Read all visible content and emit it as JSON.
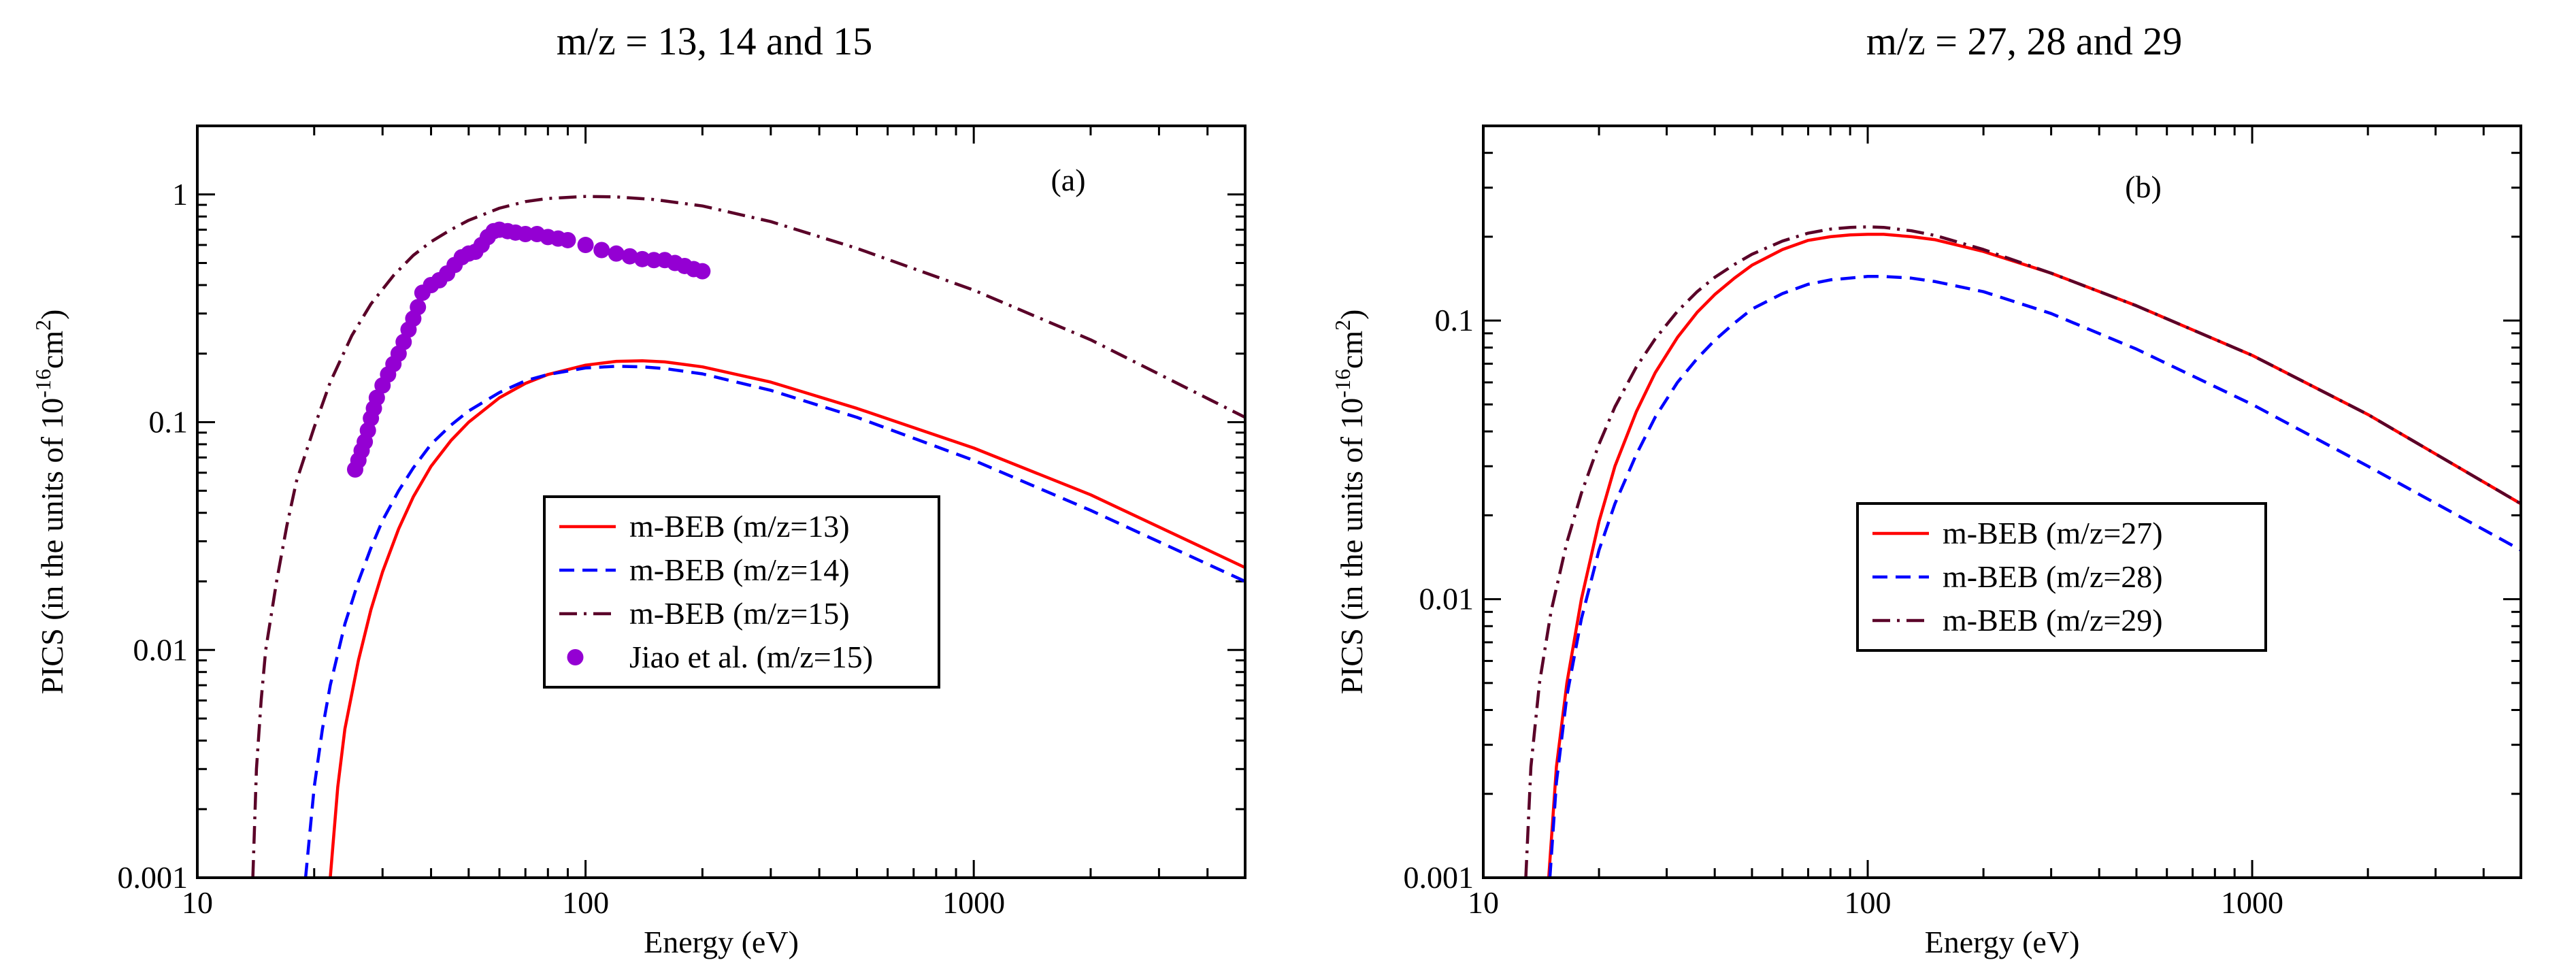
{
  "chart_data": [
    {
      "type": "line",
      "title": "m/z = 13, 14 and 15",
      "panel_label": "(a)",
      "xlabel": "Energy (eV)",
      "ylabel": "PICS (in the units of 10",
      "ylabel_exp": "-16",
      "ylabel_unit": "cm",
      "ylabel_unit_exp": "2",
      "ylabel_close": ")",
      "xscale": "log",
      "yscale": "log",
      "xlim": [
        10,
        5000
      ],
      "ylim": [
        0.001,
        2
      ],
      "x_ticks": [
        {
          "v": 10,
          "label": "10"
        },
        {
          "v": 100,
          "label": "100"
        },
        {
          "v": 1000,
          "label": "1000"
        }
      ],
      "y_ticks": [
        {
          "v": 0.001,
          "label": "0.001"
        },
        {
          "v": 0.01,
          "label": "0.01"
        },
        {
          "v": 0.1,
          "label": "0.1"
        },
        {
          "v": 1,
          "label": "1"
        }
      ],
      "legend_position": "center-right",
      "series": [
        {
          "name": "m-BEB (m/z=13)",
          "style": "solid",
          "color": "#ff0000",
          "x": [
            22,
            23,
            24,
            26,
            28,
            30,
            33,
            36,
            40,
            45,
            50,
            60,
            70,
            80,
            100,
            120,
            140,
            160,
            200,
            300,
            500,
            1000,
            2000,
            5000
          ],
          "y": [
            0.001,
            0.0025,
            0.0045,
            0.009,
            0.015,
            0.022,
            0.034,
            0.047,
            0.064,
            0.083,
            0.1,
            0.128,
            0.148,
            0.162,
            0.178,
            0.185,
            0.186,
            0.184,
            0.175,
            0.15,
            0.115,
            0.077,
            0.048,
            0.023
          ]
        },
        {
          "name": "m-BEB (m/z=14)",
          "style": "dashed",
          "color": "#0000ff",
          "x": [
            19,
            20,
            21,
            22,
            24,
            26,
            28,
            30,
            33,
            36,
            40,
            45,
            50,
            60,
            70,
            80,
            100,
            120,
            140,
            160,
            200,
            300,
            500,
            1000,
            2000,
            5000
          ],
          "y": [
            0.001,
            0.0025,
            0.0045,
            0.007,
            0.013,
            0.02,
            0.028,
            0.037,
            0.05,
            0.063,
            0.08,
            0.097,
            0.112,
            0.135,
            0.152,
            0.162,
            0.173,
            0.176,
            0.175,
            0.172,
            0.163,
            0.138,
            0.105,
            0.068,
            0.041,
            0.02
          ]
        },
        {
          "name": "m-BEB (m/z=15)",
          "style": "dashdot",
          "color": "#5a0028",
          "x": [
            13.9,
            14.2,
            14.6,
            15,
            16,
            17,
            18,
            20,
            22,
            25,
            28,
            32,
            36,
            40,
            45,
            50,
            60,
            70,
            80,
            100,
            120,
            150,
            200,
            300,
            500,
            1000,
            2000,
            5000
          ],
          "y": [
            0.001,
            0.003,
            0.006,
            0.01,
            0.02,
            0.035,
            0.055,
            0.095,
            0.15,
            0.24,
            0.33,
            0.44,
            0.54,
            0.62,
            0.7,
            0.77,
            0.87,
            0.93,
            0.96,
            0.98,
            0.975,
            0.95,
            0.89,
            0.76,
            0.58,
            0.38,
            0.23,
            0.105
          ]
        },
        {
          "name": "Jiao et al. (m/z=15)",
          "style": "markers",
          "color": "#9400d3",
          "x": [
            25.5,
            26,
            26.5,
            27,
            27.5,
            28,
            28.5,
            29,
            30,
            31,
            32,
            33,
            34,
            35,
            36,
            37,
            38,
            40,
            42,
            44,
            46,
            48,
            50,
            52,
            54,
            56,
            58,
            60,
            63,
            66,
            70,
            75,
            80,
            85,
            90,
            100,
            110,
            120,
            130,
            140,
            150,
            160,
            170,
            180,
            190,
            200
          ],
          "y": [
            0.062,
            0.068,
            0.075,
            0.082,
            0.092,
            0.104,
            0.115,
            0.128,
            0.145,
            0.162,
            0.18,
            0.2,
            0.225,
            0.255,
            0.285,
            0.32,
            0.37,
            0.4,
            0.42,
            0.45,
            0.49,
            0.53,
            0.55,
            0.56,
            0.6,
            0.65,
            0.69,
            0.7,
            0.69,
            0.68,
            0.67,
            0.67,
            0.65,
            0.64,
            0.63,
            0.6,
            0.57,
            0.55,
            0.535,
            0.52,
            0.515,
            0.515,
            0.5,
            0.485,
            0.47,
            0.46
          ]
        }
      ]
    },
    {
      "type": "line",
      "title": "m/z = 27, 28 and 29",
      "panel_label": "(b)",
      "xlabel": "Energy (eV)",
      "ylabel": "PICS (in the units of  10",
      "ylabel_exp": "-16",
      "ylabel_unit": "cm",
      "ylabel_unit_exp": "2",
      "ylabel_close": ")",
      "xscale": "log",
      "yscale": "log",
      "xlim": [
        10,
        5000
      ],
      "ylim": [
        0.001,
        0.5
      ],
      "x_ticks": [
        {
          "v": 10,
          "label": "10"
        },
        {
          "v": 100,
          "label": "100"
        },
        {
          "v": 1000,
          "label": "1000"
        }
      ],
      "y_ticks": [
        {
          "v": 0.001,
          "label": "0.001"
        },
        {
          "v": 0.01,
          "label": "0.01"
        },
        {
          "v": 0.1,
          "label": "0.1"
        }
      ],
      "legend_position": "center",
      "series": [
        {
          "name": "m-BEB (m/z=27)",
          "style": "solid",
          "color": "#ff0000",
          "x": [
            14.8,
            15.5,
            16.5,
            18,
            20,
            22,
            25,
            28,
            32,
            36,
            40,
            45,
            50,
            60,
            70,
            80,
            90,
            100,
            110,
            130,
            150,
            200,
            300,
            500,
            1000,
            2000,
            5000
          ],
          "y": [
            0.001,
            0.0025,
            0.005,
            0.01,
            0.019,
            0.03,
            0.047,
            0.065,
            0.087,
            0.107,
            0.124,
            0.142,
            0.158,
            0.18,
            0.194,
            0.2,
            0.203,
            0.204,
            0.204,
            0.2,
            0.195,
            0.177,
            0.148,
            0.113,
            0.075,
            0.046,
            0.022
          ]
        },
        {
          "name": "m-BEB (m/z=28)",
          "style": "dashed",
          "color": "#0000ff",
          "x": [
            14.9,
            15.5,
            16.5,
            18,
            20,
            22,
            25,
            28,
            32,
            36,
            40,
            45,
            50,
            60,
            70,
            80,
            100,
            110,
            130,
            150,
            200,
            300,
            500,
            1000,
            2000,
            5000
          ],
          "y": [
            0.001,
            0.0022,
            0.0045,
            0.0085,
            0.015,
            0.022,
            0.033,
            0.045,
            0.06,
            0.073,
            0.085,
            0.098,
            0.11,
            0.125,
            0.135,
            0.14,
            0.144,
            0.144,
            0.142,
            0.138,
            0.127,
            0.106,
            0.079,
            0.05,
            0.03,
            0.015
          ]
        },
        {
          "name": "m-BEB (m/z=29)",
          "style": "dashdot",
          "color": "#5a0028",
          "x": [
            12.9,
            13.3,
            14,
            15,
            16.5,
            18,
            20,
            22,
            25,
            28,
            32,
            36,
            40,
            45,
            50,
            60,
            70,
            80,
            90,
            100,
            110,
            130,
            150,
            200,
            300,
            500,
            1000,
            2000,
            5000
          ],
          "y": [
            0.001,
            0.0025,
            0.005,
            0.009,
            0.016,
            0.024,
            0.036,
            0.049,
            0.068,
            0.086,
            0.108,
            0.127,
            0.143,
            0.159,
            0.173,
            0.193,
            0.206,
            0.213,
            0.216,
            0.217,
            0.216,
            0.21,
            0.202,
            0.18,
            0.148,
            0.113,
            0.075,
            0.046,
            0.022
          ]
        }
      ]
    }
  ]
}
